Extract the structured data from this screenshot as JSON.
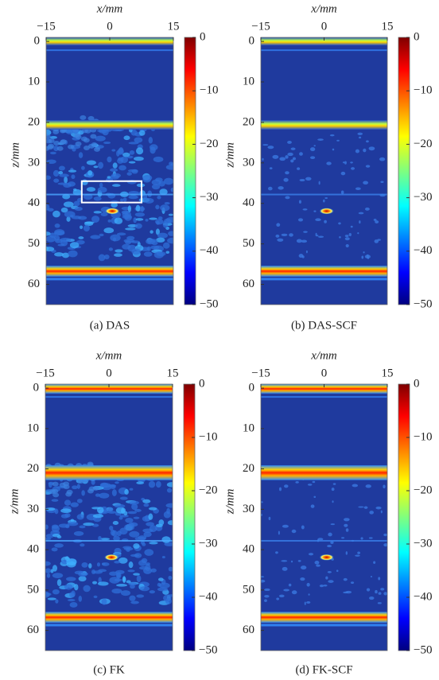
{
  "chart_data": [
    {
      "type": "heatmap",
      "caption": "(a) DAS",
      "xlabel": "x/mm",
      "ylabel": "z/mm",
      "xlim": [
        -15,
        15
      ],
      "xticks": [
        {
          "value": -15,
          "label": "−15"
        },
        0,
        15
      ],
      "ylim": [
        -1,
        65
      ],
      "yticks": [
        0,
        10,
        20,
        30,
        40,
        50,
        60
      ],
      "clim": [
        -50,
        0
      ],
      "cticks": [
        0,
        {
          "value": -10,
          "label": "−10"
        },
        {
          "value": -20,
          "label": "−20"
        },
        {
          "value": -30,
          "label": "−30"
        },
        {
          "value": -40,
          "label": "−40"
        },
        {
          "value": -50,
          "label": "−50"
        }
      ]
    },
    {
      "type": "heatmap",
      "caption": "(b) DAS-SCF",
      "xlabel": "x/mm",
      "ylabel": "z/mm",
      "xlim": [
        -15,
        15
      ],
      "xticks": [
        {
          "value": -15,
          "label": "−15"
        },
        0,
        15
      ],
      "ylim": [
        -1,
        65
      ],
      "yticks": [
        0,
        10,
        20,
        30,
        40,
        50,
        60
      ],
      "clim": [
        -50,
        0
      ],
      "cticks": [
        0,
        {
          "value": -10,
          "label": "−10"
        },
        {
          "value": -20,
          "label": "−20"
        },
        {
          "value": -30,
          "label": "−30"
        },
        {
          "value": -40,
          "label": "−40"
        },
        {
          "value": -50,
          "label": "−50"
        }
      ]
    },
    {
      "type": "heatmap",
      "caption": "(c) FK",
      "xlabel": "x/mm",
      "ylabel": "z/mm",
      "xlim": [
        -15,
        15
      ],
      "xticks": [
        {
          "value": -15,
          "label": "−15"
        },
        0,
        15
      ],
      "ylim": [
        -1,
        65
      ],
      "yticks": [
        0,
        10,
        20,
        30,
        40,
        50,
        60
      ],
      "clim": [
        -50,
        0
      ],
      "cticks": [
        0,
        {
          "value": -10,
          "label": "−10"
        },
        {
          "value": -20,
          "label": "−20"
        },
        {
          "value": -30,
          "label": "−30"
        },
        {
          "value": -40,
          "label": "−40"
        },
        {
          "value": -50,
          "label": "−50"
        }
      ]
    },
    {
      "type": "heatmap",
      "caption": "(d) FK-SCF",
      "xlabel": "x/mm",
      "ylabel": "z/mm",
      "xlim": [
        -15,
        15
      ],
      "xticks": [
        {
          "value": -15,
          "label": "−15"
        },
        0,
        15
      ],
      "ylim": [
        -1,
        65
      ],
      "yticks": [
        0,
        10,
        20,
        30,
        40,
        50,
        60
      ],
      "clim": [
        -50,
        0
      ],
      "cticks": [
        0,
        {
          "value": -10,
          "label": "−10"
        },
        {
          "value": -20,
          "label": "−20"
        },
        {
          "value": -30,
          "label": "−30"
        },
        {
          "value": -40,
          "label": "−40"
        },
        {
          "value": -50,
          "label": "−50"
        }
      ]
    }
  ]
}
